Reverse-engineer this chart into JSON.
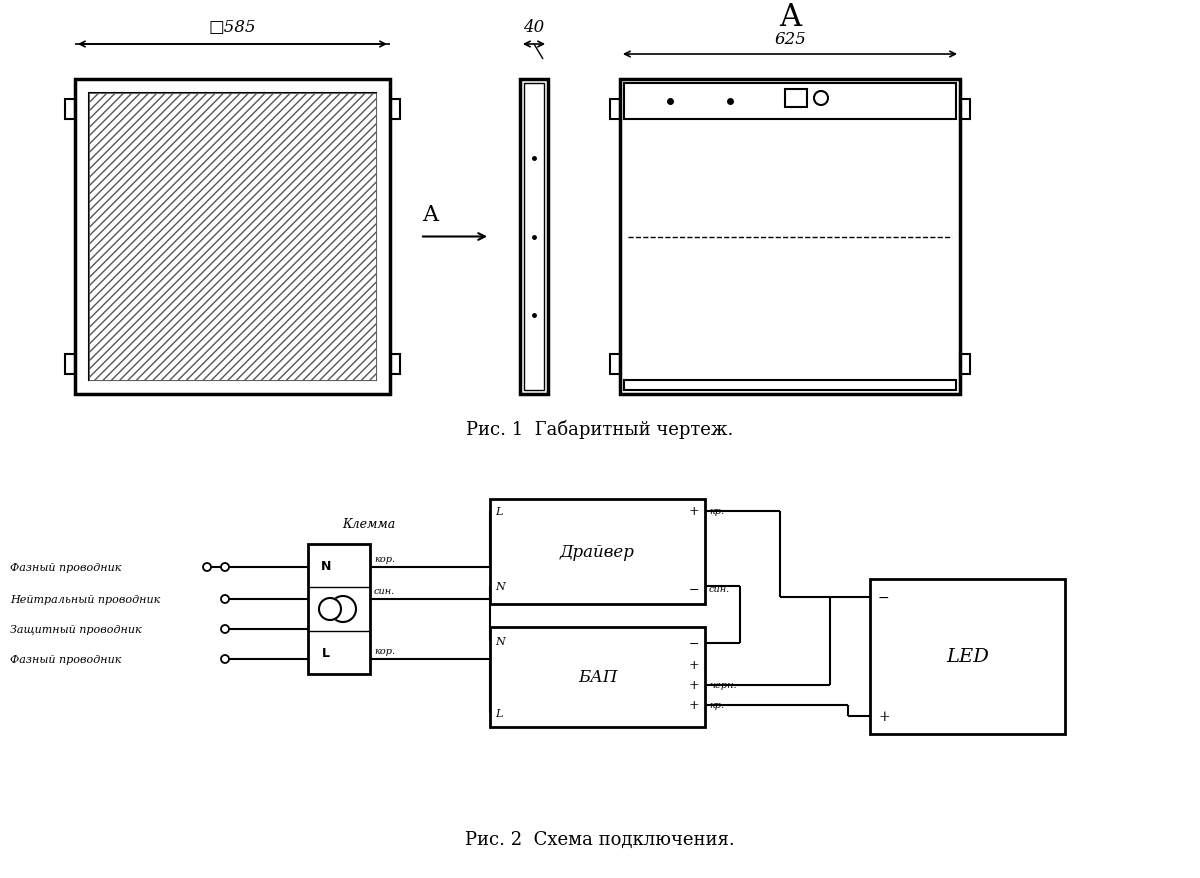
{
  "fig_caption1": "Рис. 1  Габаритный чертеж.",
  "fig_caption2": "Рис. 2  Схема подключения.",
  "dim_585": "□585",
  "dim_40": "40",
  "dim_625": "625",
  "label_A_section": "A",
  "label_A_arrow": "A",
  "label_driver": "Драйвер",
  "label_bap": "БАП",
  "label_led": "LED",
  "label_klemma": "Клемма",
  "label_fazny1": "Фазный проводник",
  "label_neitralny": "Нейтральный проводник",
  "label_zaschitny": "Защитный проводник",
  "label_fazny2": "Фазный проводник",
  "label_kor": "кор.",
  "label_sin": "син.",
  "label_chern": "черн.",
  "label_kp": "кр.",
  "label_L": "L",
  "label_N": "N",
  "label_plus": "+",
  "label_minus": "−",
  "bg_color": "#ffffff",
  "line_color": "#000000"
}
